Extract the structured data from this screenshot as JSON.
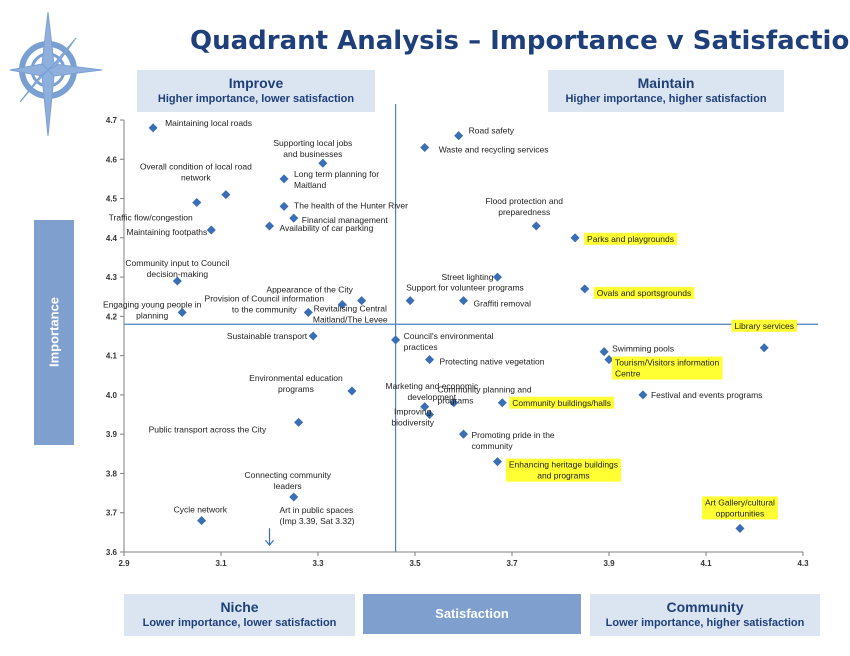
{
  "title": "Quadrant Analysis – Importance v Satisfaction",
  "quadrants": {
    "improve": {
      "title": "Improve",
      "subtitle": "Higher importance, lower satisfaction"
    },
    "maintain": {
      "title": "Maintain",
      "subtitle": "Higher importance, higher satisfaction"
    },
    "niche": {
      "title": "Niche",
      "subtitle": "Lower importance, lower satisfaction"
    },
    "community": {
      "title": "Community",
      "subtitle": "Lower importance, higher satisfaction"
    }
  },
  "colors": {
    "title": "#1f3f7a",
    "marker": "#3b6fb5",
    "highlight": "#ffff33",
    "axis_box": "#7f9fcf",
    "quad_box": "#dbe5f1"
  },
  "chart_data": {
    "type": "scatter",
    "title": "Quadrant Analysis – Importance v Satisfaction",
    "xlabel": "Satisfaction",
    "ylabel": "Importance",
    "xlim": [
      2.9,
      4.3
    ],
    "ylim": [
      3.6,
      4.7
    ],
    "xticks": [
      "2.9",
      "3.1",
      "3.3",
      "3.5",
      "3.7",
      "3.9",
      "4.1",
      "4.3"
    ],
    "yticks": [
      "3.6",
      "3.7",
      "3.8",
      "3.9",
      "4.0",
      "4.1",
      "4.2",
      "4.3",
      "4.4",
      "4.5",
      "4.6",
      "4.7"
    ],
    "divider": {
      "x": 3.46,
      "y": 4.18
    },
    "grid": false,
    "points": [
      {
        "label": "Maintaining local roads",
        "x": 2.96,
        "y": 4.68,
        "highlight": false
      },
      {
        "label": "Road safety",
        "x": 3.59,
        "y": 4.66,
        "highlight": false
      },
      {
        "label": "Waste and recycling services",
        "x": 3.52,
        "y": 4.63,
        "highlight": false
      },
      {
        "label": "Supporting local jobs and businesses",
        "x": 3.31,
        "y": 4.59,
        "highlight": false
      },
      {
        "label": "Overall condition of local road network",
        "x": 3.11,
        "y": 4.51,
        "highlight": false
      },
      {
        "label": "Long term planning for Maitland",
        "x": 3.23,
        "y": 4.55,
        "highlight": false
      },
      {
        "label": "Traffic flow/congestion",
        "x": 3.05,
        "y": 4.49,
        "highlight": false
      },
      {
        "label": "The health of the Hunter River",
        "x": 3.23,
        "y": 4.48,
        "highlight": false
      },
      {
        "label": "Financial management",
        "x": 3.25,
        "y": 4.45,
        "highlight": false
      },
      {
        "label": "Maintaining footpaths",
        "x": 3.08,
        "y": 4.42,
        "highlight": false
      },
      {
        "label": "Availability of car parking",
        "x": 3.2,
        "y": 4.43,
        "highlight": false
      },
      {
        "label": "Flood protection and preparedness",
        "x": 3.75,
        "y": 4.43,
        "highlight": false
      },
      {
        "label": "Parks and playgrounds",
        "x": 3.83,
        "y": 4.4,
        "highlight": true
      },
      {
        "label": "Community input to Council decision-making",
        "x": 3.01,
        "y": 4.29,
        "highlight": false
      },
      {
        "label": "Street lighting",
        "x": 3.67,
        "y": 4.3,
        "highlight": false
      },
      {
        "label": "Ovals and sportsgrounds",
        "x": 3.85,
        "y": 4.27,
        "highlight": true
      },
      {
        "label": "Support for volunteer programs",
        "x": 3.49,
        "y": 4.24,
        "highlight": false
      },
      {
        "label": "Graffiti removal",
        "x": 3.6,
        "y": 4.24,
        "highlight": false
      },
      {
        "label": "Appearance of the City",
        "x": 3.39,
        "y": 4.24,
        "highlight": false
      },
      {
        "label": "Provision of Council information to the community",
        "x": 3.28,
        "y": 4.21,
        "highlight": false
      },
      {
        "label": "Revitalising Central Maitland/The Levee",
        "x": 3.35,
        "y": 4.23,
        "highlight": false
      },
      {
        "label": "Engaging young people in planning",
        "x": 3.02,
        "y": 4.21,
        "highlight": false
      },
      {
        "label": "Sustainable transport",
        "x": 3.29,
        "y": 4.15,
        "highlight": false
      },
      {
        "label": "Council's environmental practices",
        "x": 3.46,
        "y": 4.14,
        "highlight": false
      },
      {
        "label": "Library services",
        "x": 4.22,
        "y": 4.12,
        "highlight": true
      },
      {
        "label": "Swimming pools",
        "x": 3.89,
        "y": 4.11,
        "highlight": false
      },
      {
        "label": "Tourism/Visitors information Centre",
        "x": 3.9,
        "y": 4.09,
        "highlight": true
      },
      {
        "label": "Protecting native vegetation",
        "x": 3.53,
        "y": 4.09,
        "highlight": false
      },
      {
        "label": "Environmental education programs",
        "x": 3.37,
        "y": 4.01,
        "highlight": false
      },
      {
        "label": "Marketing and economic development",
        "x": 3.58,
        "y": 3.98,
        "highlight": false
      },
      {
        "label": "Community buildings/halls",
        "x": 3.68,
        "y": 3.98,
        "highlight": true
      },
      {
        "label": "Festival and events programs",
        "x": 3.97,
        "y": 4.0,
        "highlight": false
      },
      {
        "label": "Community planning and programs",
        "x": 3.53,
        "y": 3.95,
        "highlight": false
      },
      {
        "label": "Improving biodiversity",
        "x": 3.52,
        "y": 3.97,
        "highlight": false
      },
      {
        "label": "Promoting pride in the community",
        "x": 3.6,
        "y": 3.9,
        "highlight": false
      },
      {
        "label": "Public transport across the City",
        "x": 3.26,
        "y": 3.93,
        "highlight": false
      },
      {
        "label": "Enhancing heritage buildings and programs",
        "x": 3.67,
        "y": 3.83,
        "highlight": true
      },
      {
        "label": "Connecting community leaders",
        "x": 3.25,
        "y": 3.74,
        "highlight": false
      },
      {
        "label": "Cycle network",
        "x": 3.06,
        "y": 3.68,
        "highlight": false
      },
      {
        "label": "Art Gallery/cultural opportunities",
        "x": 4.17,
        "y": 3.66,
        "highlight": true
      }
    ],
    "annotations": [
      {
        "text": "Art in public spaces (Imp 3.39, Sat 3.32)",
        "x": 3.2,
        "y": 3.63
      }
    ]
  }
}
